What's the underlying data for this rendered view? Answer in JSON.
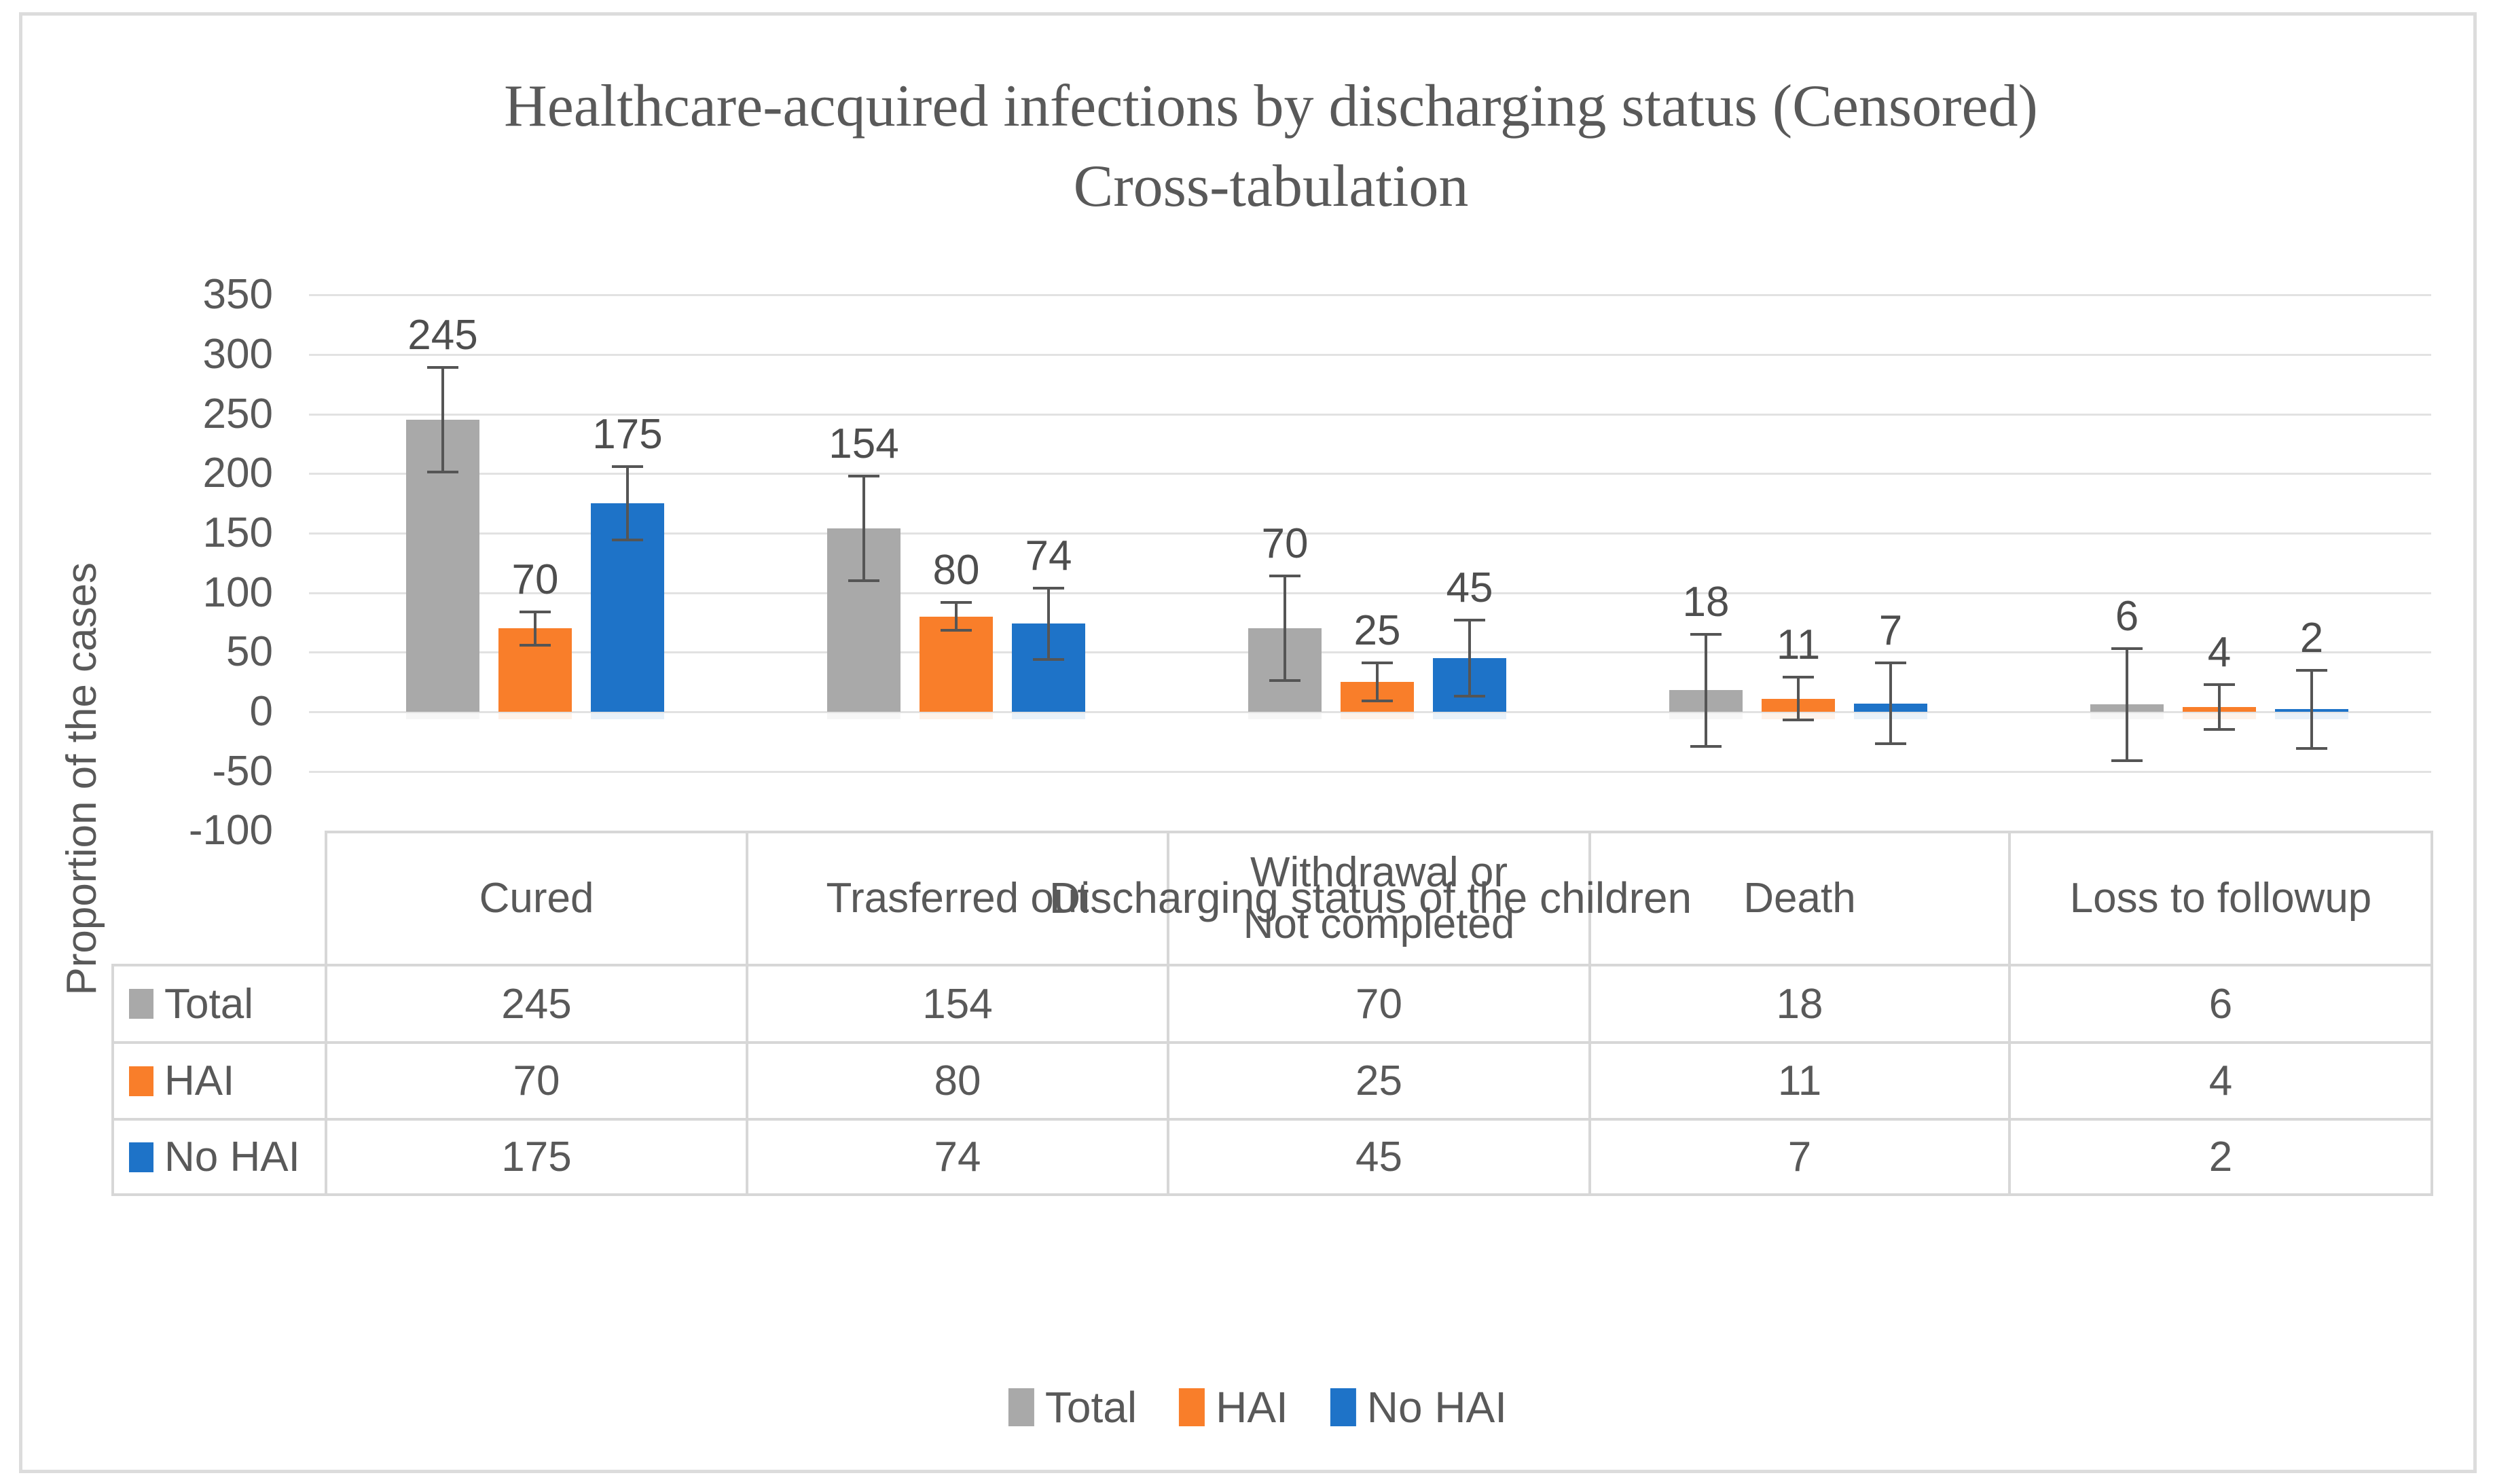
{
  "chart": {
    "title_line1": "Healthcare-acquired infections by discharging status (Censored)",
    "title_line2": "Cross-tabulation",
    "y_axis_title": "Proportion of the cases",
    "x_axis_title": "Discharging status of the children"
  },
  "chart_data": {
    "type": "bar",
    "title": "Healthcare-acquired infections by discharging status (Censored) Cross-tabulation",
    "xlabel": "Discharging status of the children",
    "ylabel": "Proportion of the cases",
    "categories": [
      "Cured",
      "Trasferred out",
      "Withdrawal or\nNot completed",
      "Death",
      "Loss to followup"
    ],
    "series": [
      {
        "name": "Total",
        "color": "#A9A9A9",
        "values": [
          245,
          154,
          70,
          18,
          6
        ],
        "errors": [
          45,
          45,
          45,
          48,
          48
        ]
      },
      {
        "name": "HAI",
        "color": "#F97E2A",
        "values": [
          70,
          80,
          25,
          11,
          4
        ],
        "errors": [
          15,
          13,
          17,
          19,
          20
        ]
      },
      {
        "name": "No HAI",
        "color": "#1E73C8",
        "values": [
          175,
          74,
          45,
          7,
          2
        ],
        "errors": [
          32,
          31,
          33,
          35,
          34
        ]
      }
    ],
    "ylim": [
      -100,
      350
    ],
    "ytick_step": 50,
    "ytick_labels": [
      "350",
      "300",
      "250",
      "200",
      "150",
      "100",
      "50",
      "0",
      "-50",
      "-100"
    ],
    "grid": true,
    "error_bars": true,
    "legend_position": "bottom",
    "gridline_color": "#E2E2E2",
    "error_bar_color": "#555555",
    "text_color": "#595959"
  },
  "table": {
    "headers": [
      "Cured",
      "Trasferred out",
      "Withdrawal or\nNot completed",
      "Death",
      "Loss to followup"
    ],
    "rows": [
      {
        "label": "Total",
        "swatch_color": "#A9A9A9",
        "values": [
          "245",
          "154",
          "70",
          "18",
          "6"
        ]
      },
      {
        "label": "HAI",
        "swatch_color": "#F97E2A",
        "values": [
          "70",
          "80",
          "25",
          "11",
          "4"
        ]
      },
      {
        "label": "No HAI",
        "swatch_color": "#1E73C8",
        "values": [
          "175",
          "74",
          "45",
          "7",
          "2"
        ]
      }
    ]
  },
  "legend": {
    "items": [
      {
        "label": "Total",
        "color": "#A9A9A9"
      },
      {
        "label": "HAI",
        "color": "#F97E2A"
      },
      {
        "label": "No HAI",
        "color": "#1E73C8"
      }
    ]
  }
}
